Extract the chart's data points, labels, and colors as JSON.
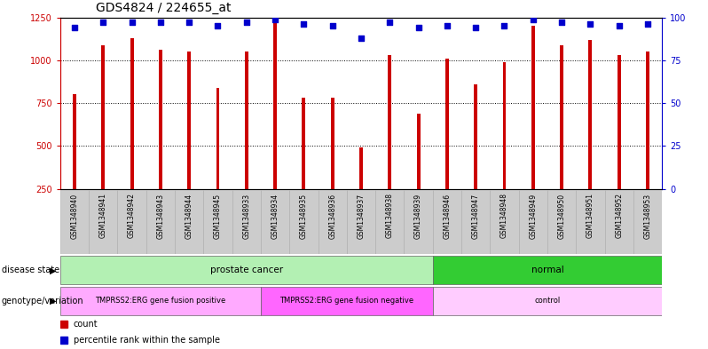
{
  "title": "GDS4824 / 224655_at",
  "samples": [
    "GSM1348940",
    "GSM1348941",
    "GSM1348942",
    "GSM1348943",
    "GSM1348944",
    "GSM1348945",
    "GSM1348933",
    "GSM1348934",
    "GSM1348935",
    "GSM1348936",
    "GSM1348937",
    "GSM1348938",
    "GSM1348939",
    "GSM1348946",
    "GSM1348947",
    "GSM1348948",
    "GSM1348949",
    "GSM1348950",
    "GSM1348951",
    "GSM1348952",
    "GSM1348953"
  ],
  "bar_values": [
    800,
    1090,
    1130,
    1060,
    1050,
    840,
    1050,
    1230,
    780,
    780,
    490,
    1030,
    690,
    1010,
    860,
    990,
    1200,
    1090,
    1120,
    1030,
    1050
  ],
  "percentile_values": [
    94,
    97,
    97,
    97,
    97,
    95,
    97,
    99,
    96,
    95,
    88,
    97,
    94,
    95,
    94,
    95,
    99,
    97,
    96,
    95,
    96
  ],
  "bar_color": "#cc0000",
  "dot_color": "#0000cc",
  "ylim_left": [
    250,
    1250
  ],
  "ylim_right": [
    0,
    100
  ],
  "yticks_left": [
    250,
    500,
    750,
    1000,
    1250
  ],
  "yticks_right": [
    0,
    25,
    50,
    75,
    100
  ],
  "grid_yticks": [
    500,
    750,
    1000
  ],
  "disease_state_groups": [
    {
      "label": "prostate cancer",
      "start": 0,
      "end": 13,
      "color": "#b3f0b3"
    },
    {
      "label": "normal",
      "start": 13,
      "end": 21,
      "color": "#33cc33"
    }
  ],
  "genotype_groups": [
    {
      "label": "TMPRSS2:ERG gene fusion positive",
      "start": 0,
      "end": 7,
      "color": "#ffaaff"
    },
    {
      "label": "TMPRSS2:ERG gene fusion negative",
      "start": 7,
      "end": 13,
      "color": "#ff66ff"
    },
    {
      "label": "control",
      "start": 13,
      "end": 21,
      "color": "#ffccff"
    }
  ],
  "legend_items": [
    {
      "label": "count",
      "color": "#cc0000"
    },
    {
      "label": "percentile rank within the sample",
      "color": "#0000cc"
    }
  ],
  "bg_color": "#ffffff",
  "title_fontsize": 10,
  "tick_fontsize": 7,
  "sample_fontsize": 5.5,
  "bar_width": 0.12,
  "dot_size": 18
}
